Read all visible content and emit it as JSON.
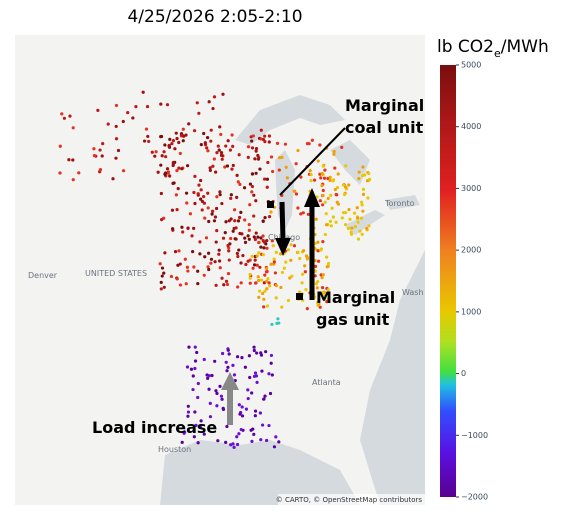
{
  "title": "4/25/2026 2:05-2:10",
  "colorbar": {
    "title_main": "lb CO2",
    "title_sub": "e",
    "title_tail": "/MWh",
    "lim": [
      -2000,
      5000
    ],
    "ticks": [
      5000,
      4000,
      3000,
      2000,
      1000,
      0,
      {
        "value": -1000,
        "label": "−1000"
      },
      {
        "value": -2000,
        "label": "−2000"
      }
    ]
  },
  "annotations": {
    "coal_line1": "Marginal",
    "coal_line2": "coal unit",
    "gas_line1": "Marginal",
    "gas_line2": "gas unit",
    "load": "Load increase"
  },
  "map_labels": {
    "denver": "Denver",
    "country": "UNITED STATES",
    "toronto": "Toronto",
    "atlanta": "Atlanta",
    "houston": "Houston",
    "washington": "Wash",
    "chicago": "Chicago"
  },
  "attribution": "© CARTO, © OpenStreetMap contributors"
}
